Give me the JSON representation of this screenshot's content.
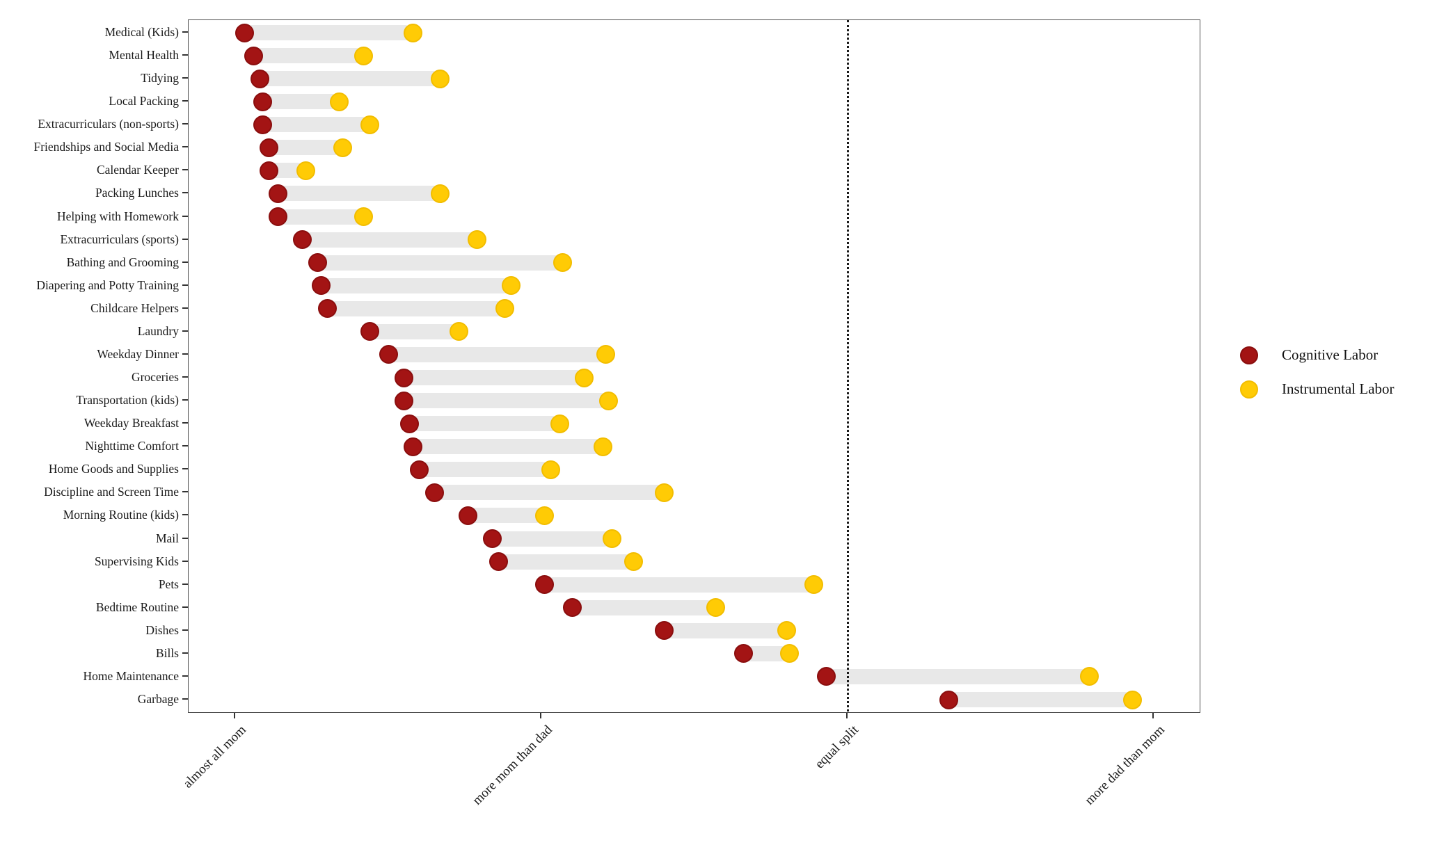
{
  "chart_data": {
    "type": "dumbbell",
    "title": "",
    "orientation": "horizontal",
    "grid": false,
    "x_axis": {
      "scale_note": "ordinal share of labor, mom vs dad",
      "tick_values": [
        1,
        2,
        3,
        4
      ],
      "tick_labels": [
        "almost all mom",
        "more mom than dad",
        "equal split",
        "more dad than mom"
      ],
      "range": [
        0.85,
        4.15
      ]
    },
    "reference_line": {
      "value": 3,
      "meaning": "equal split",
      "style": "dotted"
    },
    "legend": [
      {
        "label": "Cognitive Labor",
        "color": "#a31414"
      },
      {
        "label": "Instrumental Labor",
        "color": "#ffcb05"
      }
    ],
    "series": [
      {
        "name": "Cognitive Labor",
        "key": "cognitive",
        "color": "#a31414",
        "ring": "#8a0e0e"
      },
      {
        "name": "Instrumental Labor",
        "key": "instrumental",
        "color": "#ffcb05",
        "ring": "#f2bd00"
      }
    ],
    "connector_color": "#e8e8e8",
    "tasks": [
      {
        "label": "Medical (Kids)",
        "cognitive": 1.03,
        "instrumental": 1.58
      },
      {
        "label": "Mental Health",
        "cognitive": 1.06,
        "instrumental": 1.42
      },
      {
        "label": "Tidying",
        "cognitive": 1.08,
        "instrumental": 1.67
      },
      {
        "label": "Local Packing",
        "cognitive": 1.09,
        "instrumental": 1.34
      },
      {
        "label": "Extracurriculars (non-sports)",
        "cognitive": 1.09,
        "instrumental": 1.44
      },
      {
        "label": "Friendships and Social Media",
        "cognitive": 1.11,
        "instrumental": 1.35
      },
      {
        "label": "Calendar Keeper",
        "cognitive": 1.11,
        "instrumental": 1.23
      },
      {
        "label": "Packing Lunches",
        "cognitive": 1.14,
        "instrumental": 1.67
      },
      {
        "label": "Helping with Homework",
        "cognitive": 1.14,
        "instrumental": 1.42
      },
      {
        "label": "Extracurriculars (sports)",
        "cognitive": 1.22,
        "instrumental": 1.79
      },
      {
        "label": "Bathing and Grooming",
        "cognitive": 1.27,
        "instrumental": 2.07
      },
      {
        "label": "Diapering and Potty Training",
        "cognitive": 1.28,
        "instrumental": 1.9
      },
      {
        "label": "Childcare Helpers",
        "cognitive": 1.3,
        "instrumental": 1.88
      },
      {
        "label": "Laundry",
        "cognitive": 1.44,
        "instrumental": 1.73
      },
      {
        "label": "Weekday Dinner",
        "cognitive": 1.5,
        "instrumental": 2.21
      },
      {
        "label": "Groceries",
        "cognitive": 1.55,
        "instrumental": 2.14
      },
      {
        "label": "Transportation (kids)",
        "cognitive": 1.55,
        "instrumental": 2.22
      },
      {
        "label": "Weekday Breakfast",
        "cognitive": 1.57,
        "instrumental": 2.06
      },
      {
        "label": "Nighttime Comfort",
        "cognitive": 1.58,
        "instrumental": 2.2
      },
      {
        "label": "Home Goods and Supplies",
        "cognitive": 1.6,
        "instrumental": 2.03
      },
      {
        "label": "Discipline and Screen Time",
        "cognitive": 1.65,
        "instrumental": 2.4
      },
      {
        "label": "Morning Routine (kids)",
        "cognitive": 1.76,
        "instrumental": 2.01
      },
      {
        "label": "Mail",
        "cognitive": 1.84,
        "instrumental": 2.23
      },
      {
        "label": "Supervising Kids",
        "cognitive": 1.86,
        "instrumental": 2.3
      },
      {
        "label": "Pets",
        "cognitive": 2.01,
        "instrumental": 2.89
      },
      {
        "label": "Bedtime Routine",
        "cognitive": 2.1,
        "instrumental": 2.57
      },
      {
        "label": "Dishes",
        "cognitive": 2.4,
        "instrumental": 2.8
      },
      {
        "label": "Bills",
        "cognitive": 2.66,
        "instrumental": 2.81
      },
      {
        "label": "Home Maintenance",
        "cognitive": 2.93,
        "instrumental": 3.79
      },
      {
        "label": "Garbage",
        "cognitive": 3.33,
        "instrumental": 3.93
      }
    ]
  }
}
